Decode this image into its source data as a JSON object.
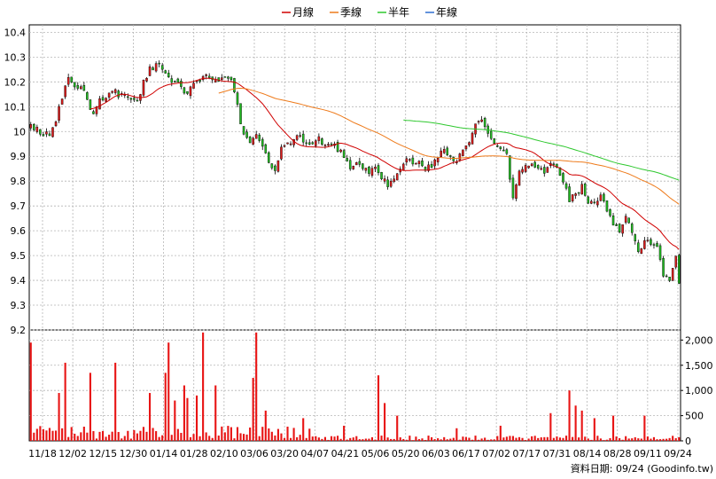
{
  "chart_data": {
    "type": "candlestick",
    "legend": [
      {
        "name": "月線",
        "color": "#d00000"
      },
      {
        "name": "季線",
        "color": "#ee7a1a"
      },
      {
        "name": "半年",
        "color": "#2ec82e"
      },
      {
        "name": "年線",
        "color": "#2f6fd1"
      }
    ],
    "source": "資料日期: 09/24  (Goodinfo.tw)",
    "price_ticks": [
      "10.4",
      "10.3",
      "10.2",
      "10.1",
      "10",
      "9.9",
      "9.8",
      "9.7",
      "9.6",
      "9.5",
      "9.4",
      "9.3",
      "9.2"
    ],
    "price_ylim": [
      9.2,
      10.43
    ],
    "volume_ticks": [
      "2,000",
      "1,500",
      "1,000",
      "500",
      "0"
    ],
    "volume_ylim": [
      0,
      2200
    ],
    "x_labels": [
      "11/18",
      "12/02",
      "12/15",
      "12/30",
      "01/14",
      "01/28",
      "02/10",
      "03/06",
      "03/20",
      "04/07",
      "04/21",
      "05/06",
      "05/20",
      "06/03",
      "06/17",
      "07/02",
      "07/17",
      "07/31",
      "08/14",
      "08/28",
      "09/11",
      "09/24"
    ],
    "n_days": 208,
    "price_anchors": [
      [
        0,
        10.02
      ],
      [
        3,
        10.0
      ],
      [
        6,
        9.98
      ],
      [
        8,
        10.05
      ],
      [
        10,
        10.14
      ],
      [
        12,
        10.22
      ],
      [
        14,
        10.18
      ],
      [
        16,
        10.19
      ],
      [
        18,
        10.12
      ],
      [
        20,
        10.08
      ],
      [
        22,
        10.12
      ],
      [
        24,
        10.13
      ],
      [
        26,
        10.17
      ],
      [
        28,
        10.15
      ],
      [
        30,
        10.16
      ],
      [
        32,
        10.14
      ],
      [
        34,
        10.12
      ],
      [
        36,
        10.2
      ],
      [
        38,
        10.25
      ],
      [
        40,
        10.27
      ],
      [
        42,
        10.26
      ],
      [
        44,
        10.22
      ],
      [
        46,
        10.2
      ],
      [
        48,
        10.18
      ],
      [
        50,
        10.15
      ],
      [
        52,
        10.19
      ],
      [
        54,
        10.2
      ],
      [
        56,
        10.22
      ],
      [
        58,
        10.2
      ],
      [
        60,
        10.21
      ],
      [
        62,
        10.22
      ],
      [
        64,
        10.2
      ],
      [
        66,
        10.1
      ],
      [
        68,
        9.98
      ],
      [
        70,
        9.95
      ],
      [
        72,
        10.0
      ],
      [
        74,
        9.93
      ],
      [
        76,
        9.88
      ],
      [
        78,
        9.85
      ],
      [
        80,
        9.93
      ],
      [
        82,
        9.95
      ],
      [
        84,
        9.97
      ],
      [
        86,
        9.98
      ],
      [
        88,
        9.95
      ],
      [
        90,
        9.96
      ],
      [
        92,
        9.97
      ],
      [
        94,
        9.95
      ],
      [
        96,
        9.96
      ],
      [
        98,
        9.93
      ],
      [
        100,
        9.9
      ],
      [
        102,
        9.86
      ],
      [
        104,
        9.88
      ],
      [
        106,
        9.86
      ],
      [
        108,
        9.84
      ],
      [
        110,
        9.86
      ],
      [
        112,
        9.82
      ],
      [
        114,
        9.78
      ],
      [
        116,
        9.82
      ],
      [
        118,
        9.86
      ],
      [
        120,
        9.9
      ],
      [
        122,
        9.88
      ],
      [
        124,
        9.87
      ],
      [
        126,
        9.85
      ],
      [
        128,
        9.86
      ],
      [
        130,
        9.9
      ],
      [
        132,
        9.92
      ],
      [
        134,
        9.9
      ],
      [
        136,
        9.88
      ],
      [
        138,
        9.92
      ],
      [
        140,
        9.95
      ],
      [
        142,
        10.02
      ],
      [
        144,
        10.05
      ],
      [
        146,
        9.98
      ],
      [
        148,
        9.95
      ],
      [
        150,
        9.93
      ],
      [
        152,
        9.9
      ],
      [
        154,
        9.72
      ],
      [
        156,
        9.85
      ],
      [
        158,
        9.87
      ],
      [
        160,
        9.86
      ],
      [
        162,
        9.85
      ],
      [
        164,
        9.84
      ],
      [
        166,
        9.86
      ],
      [
        168,
        9.85
      ],
      [
        170,
        9.8
      ],
      [
        172,
        9.72
      ],
      [
        174,
        9.75
      ],
      [
        176,
        9.78
      ],
      [
        178,
        9.72
      ],
      [
        180,
        9.7
      ],
      [
        182,
        9.74
      ],
      [
        184,
        9.68
      ],
      [
        186,
        9.62
      ],
      [
        188,
        9.6
      ],
      [
        190,
        9.66
      ],
      [
        192,
        9.6
      ],
      [
        194,
        9.52
      ],
      [
        196,
        9.55
      ],
      [
        198,
        9.55
      ],
      [
        200,
        9.54
      ],
      [
        202,
        9.42
      ],
      [
        204,
        9.4
      ],
      [
        206,
        9.5
      ],
      [
        207,
        9.38
      ]
    ],
    "volume_spikes": [
      [
        0,
        1950
      ],
      [
        9,
        950
      ],
      [
        11,
        1550
      ],
      [
        19,
        1350
      ],
      [
        27,
        1550
      ],
      [
        38,
        950
      ],
      [
        43,
        1350
      ],
      [
        44,
        1950
      ],
      [
        46,
        800
      ],
      [
        49,
        1100
      ],
      [
        50,
        850
      ],
      [
        53,
        900
      ],
      [
        55,
        2150
      ],
      [
        59,
        1100
      ],
      [
        71,
        1250
      ],
      [
        72,
        2150
      ],
      [
        75,
        600
      ],
      [
        87,
        450
      ],
      [
        100,
        300
      ],
      [
        111,
        1300
      ],
      [
        113,
        750
      ],
      [
        117,
        500
      ],
      [
        136,
        250
      ],
      [
        150,
        300
      ],
      [
        166,
        550
      ],
      [
        172,
        1000
      ],
      [
        174,
        700
      ],
      [
        176,
        600
      ],
      [
        180,
        450
      ],
      [
        186,
        500
      ],
      [
        196,
        500
      ]
    ]
  }
}
